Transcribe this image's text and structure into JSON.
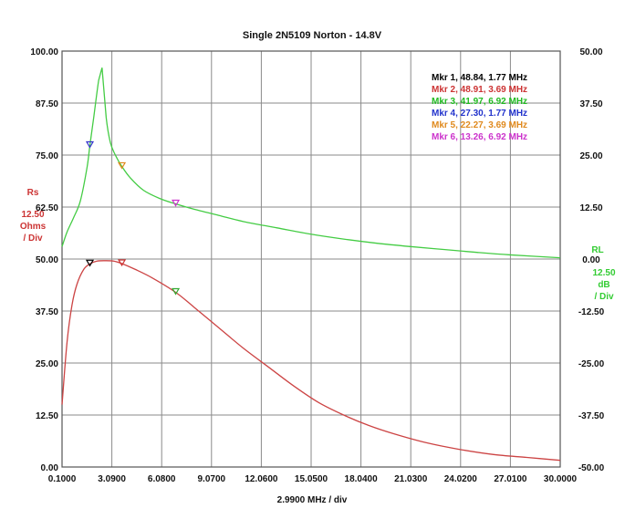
{
  "chart_data": {
    "type": "line",
    "title": "Single 2N5109 Norton - 14.8V",
    "xlabel": "2.9900 MHz / div",
    "xlim": [
      0.1,
      30.0
    ],
    "x_ticks": [
      "0.1000",
      "3.0900",
      "6.0800",
      "9.0700",
      "12.0600",
      "15.0500",
      "18.0400",
      "21.0300",
      "24.0200",
      "27.0100",
      "30.0000"
    ],
    "left_axis": {
      "name": "Rs",
      "scale_value": "12.50",
      "unit": "Ohms",
      "per": "/ Div",
      "ylim": [
        0,
        100
      ],
      "ticks": [
        "0.00",
        "12.50",
        "25.00",
        "37.50",
        "50.00",
        "62.50",
        "75.00",
        "87.50",
        "100.00"
      ],
      "color": "#cc3333"
    },
    "right_axis": {
      "name": "RL",
      "scale_value": "12.50",
      "unit": "dB",
      "per": "/ Div",
      "ylim": [
        -50,
        50
      ],
      "ticks": [
        "-50.00",
        "-37.50",
        "-25.00",
        "-12.50",
        "0.00",
        "12.50",
        "25.00",
        "37.50",
        "50.00"
      ],
      "color": "#33cc33"
    },
    "grid": true,
    "series": [
      {
        "color": "#cc4444",
        "axis": "left",
        "x": [
          0.1,
          0.4,
          0.7,
          1.0,
          1.4,
          1.77,
          2.2,
          2.7,
          3.2,
          3.69,
          4.5,
          5.5,
          6.92,
          8.0,
          9.5,
          11.0,
          12.5,
          14.0,
          15.5,
          17.0,
          18.5,
          20.0,
          22.0,
          24.0,
          26.0,
          28.0,
          30.0
        ],
        "values": [
          15,
          30,
          39,
          44,
          47.5,
          48.84,
          49.5,
          49.6,
          49.5,
          48.91,
          47.5,
          45.5,
          42,
          38.5,
          33.5,
          28.5,
          24,
          19.5,
          15.5,
          12.5,
          10,
          8,
          5.8,
          4.2,
          3,
          2.3,
          1.6
        ],
        "markers": [
          {
            "x": 1.77,
            "y": 48.84,
            "color": "#000000"
          },
          {
            "x": 3.69,
            "y": 48.91,
            "color": "#cc3333"
          },
          {
            "x": 6.92,
            "y": 42.0,
            "color": "#33aa33"
          }
        ]
      },
      {
        "color": "#44cc44",
        "axis": "right",
        "x": [
          0.1,
          0.4,
          0.8,
          1.2,
          1.6,
          1.77,
          2.0,
          2.3,
          2.5,
          2.75,
          3.0,
          3.3,
          3.69,
          4.2,
          5.0,
          6.0,
          6.92,
          8.0,
          9.5,
          11.0,
          13.0,
          15.0,
          17.0,
          19.0,
          21.0,
          23.0,
          25.0,
          27.0,
          30.0
        ],
        "values": [
          3,
          6.5,
          10,
          14,
          22,
          27.3,
          34,
          43,
          46,
          34,
          28,
          25,
          22.27,
          19.5,
          16.5,
          14.5,
          13.26,
          12,
          10.5,
          9,
          7.5,
          6,
          4.8,
          3.8,
          3,
          2.3,
          1.6,
          1,
          0.3
        ],
        "markers": [
          {
            "x": 1.77,
            "y": 27.3,
            "color": "#3333cc"
          },
          {
            "x": 3.69,
            "y": 22.27,
            "color": "#e08a1e"
          },
          {
            "x": 6.92,
            "y": 13.26,
            "color": "#cc33cc"
          }
        ]
      }
    ],
    "marker_labels": [
      {
        "text": "Mkr 1, 48.84, 1.77 MHz",
        "color": "#000000"
      },
      {
        "text": "Mkr 2, 48.91, 3.69 MHz",
        "color": "#cc3333"
      },
      {
        "text": "Mkr 3, 41.97, 6.92 MHz",
        "color": "#22bb22"
      },
      {
        "text": "Mkr 4, 27.30, 1.77 MHz",
        "color": "#2233cc"
      },
      {
        "text": "Mkr 5, 22.27, 3.69 MHz",
        "color": "#e08a1e"
      },
      {
        "text": "Mkr 6, 13.26, 6.92 MHz",
        "color": "#cc33cc"
      }
    ],
    "legend_placement": "top-right"
  }
}
